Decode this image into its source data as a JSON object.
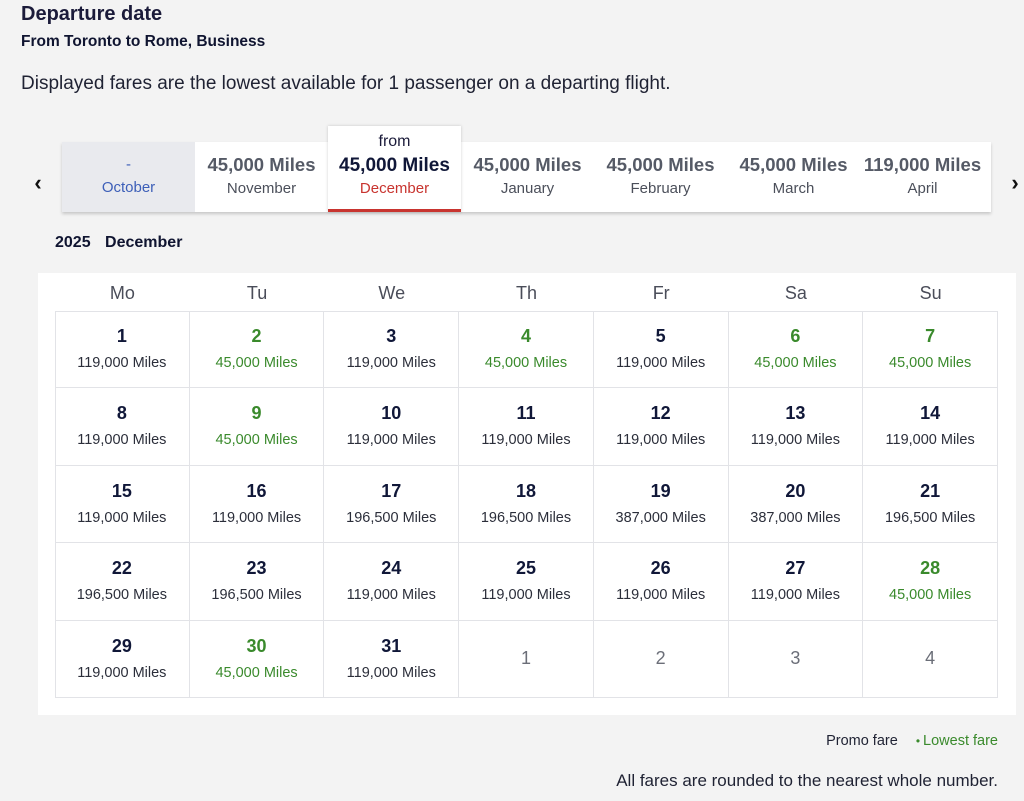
{
  "header": {
    "title": "Departure date",
    "subtitle": "From Toronto to Rome, Business",
    "notice": "Displayed fares are the lowest available for 1 passenger on a departing flight."
  },
  "nav": {
    "prev_icon": "chevron-left-icon",
    "next_icon": "chevron-right-icon",
    "prev_glyph": "‹",
    "next_glyph": "›"
  },
  "months": [
    {
      "miles": "-",
      "name": "October",
      "state": "disabled"
    },
    {
      "miles": "45,000 Miles",
      "name": "November",
      "state": "normal"
    },
    {
      "from": "from",
      "miles": "45,000 Miles",
      "name": "December",
      "state": "selected"
    },
    {
      "miles": "45,000 Miles",
      "name": "January",
      "state": "normal"
    },
    {
      "miles": "45,000 Miles",
      "name": "February",
      "state": "normal"
    },
    {
      "miles": "45,000 Miles",
      "name": "March",
      "state": "normal"
    },
    {
      "miles": "119,000 Miles",
      "name": "April",
      "state": "normal"
    }
  ],
  "calendar": {
    "year": "2025",
    "month": "December",
    "weekdays": [
      "Mo",
      "Tu",
      "We",
      "Th",
      "Fr",
      "Sa",
      "Su"
    ],
    "days": [
      {
        "day": "1",
        "fare": "119,000 Miles",
        "lowest": false
      },
      {
        "day": "2",
        "fare": "45,000 Miles",
        "lowest": true
      },
      {
        "day": "3",
        "fare": "119,000 Miles",
        "lowest": false
      },
      {
        "day": "4",
        "fare": "45,000 Miles",
        "lowest": true
      },
      {
        "day": "5",
        "fare": "119,000 Miles",
        "lowest": false
      },
      {
        "day": "6",
        "fare": "45,000 Miles",
        "lowest": true
      },
      {
        "day": "7",
        "fare": "45,000 Miles",
        "lowest": true
      },
      {
        "day": "8",
        "fare": "119,000 Miles",
        "lowest": false
      },
      {
        "day": "9",
        "fare": "45,000 Miles",
        "lowest": true
      },
      {
        "day": "10",
        "fare": "119,000 Miles",
        "lowest": false
      },
      {
        "day": "11",
        "fare": "119,000 Miles",
        "lowest": false
      },
      {
        "day": "12",
        "fare": "119,000 Miles",
        "lowest": false
      },
      {
        "day": "13",
        "fare": "119,000 Miles",
        "lowest": false
      },
      {
        "day": "14",
        "fare": "119,000 Miles",
        "lowest": false
      },
      {
        "day": "15",
        "fare": "119,000 Miles",
        "lowest": false
      },
      {
        "day": "16",
        "fare": "119,000 Miles",
        "lowest": false
      },
      {
        "day": "17",
        "fare": "196,500 Miles",
        "lowest": false
      },
      {
        "day": "18",
        "fare": "196,500 Miles",
        "lowest": false
      },
      {
        "day": "19",
        "fare": "387,000 Miles",
        "lowest": false
      },
      {
        "day": "20",
        "fare": "387,000 Miles",
        "lowest": false
      },
      {
        "day": "21",
        "fare": "196,500 Miles",
        "lowest": false
      },
      {
        "day": "22",
        "fare": "196,500 Miles",
        "lowest": false
      },
      {
        "day": "23",
        "fare": "196,500 Miles",
        "lowest": false
      },
      {
        "day": "24",
        "fare": "119,000 Miles",
        "lowest": false
      },
      {
        "day": "25",
        "fare": "119,000 Miles",
        "lowest": false
      },
      {
        "day": "26",
        "fare": "119,000 Miles",
        "lowest": false
      },
      {
        "day": "27",
        "fare": "119,000 Miles",
        "lowest": false
      },
      {
        "day": "28",
        "fare": "45,000 Miles",
        "lowest": true
      },
      {
        "day": "29",
        "fare": "119,000 Miles",
        "lowest": false
      },
      {
        "day": "30",
        "fare": "45,000 Miles",
        "lowest": true
      },
      {
        "day": "31",
        "fare": "119,000 Miles",
        "lowest": false
      },
      {
        "day": "1",
        "fare": "",
        "lowest": false,
        "outside": true
      },
      {
        "day": "2",
        "fare": "",
        "lowest": false,
        "outside": true
      },
      {
        "day": "3",
        "fare": "",
        "lowest": false,
        "outside": true
      },
      {
        "day": "4",
        "fare": "",
        "lowest": false,
        "outside": true
      }
    ]
  },
  "legend": {
    "promo": "Promo fare",
    "lowest": "Lowest fare",
    "lowest_dot": "•"
  },
  "footnote": "All fares are rounded to the nearest whole number.",
  "colors": {
    "lowest_fare": "#3a8a2c",
    "selected_accent": "#c8342f",
    "disabled_link": "#3d5fb8",
    "text_dark": "#1b1b3a"
  }
}
